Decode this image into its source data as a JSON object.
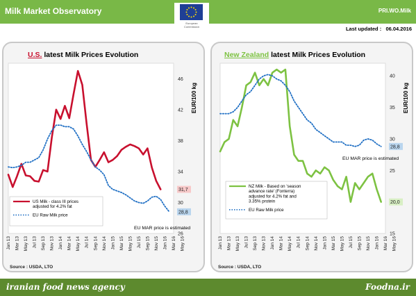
{
  "header": {
    "title": "Milk Market Observatory",
    "code": "PRI.WO.Milk",
    "logo_text": "European\nCommission",
    "last_updated": "Last updated :   06.04.2016"
  },
  "colors": {
    "header_green": "#79b847",
    "footer_green": "#5d8a2e",
    "us_series": "#c8102e",
    "nz_series": "#7dc242",
    "eu_series": "#1f6fc4",
    "us_badge": "#f7c9c9",
    "eu_badge": "#b9d5ee",
    "nz_badge": "#d8efc4"
  },
  "footer": {
    "agency": "iranian food news agency",
    "site": "Foodna.ir"
  },
  "chart_data": [
    {
      "type": "line",
      "country": "U.S.",
      "title_rest": "latest Milk Prices Evolution",
      "ylabel": "EUR/100 kg",
      "ylim": [
        26,
        48
      ],
      "yticks": [
        26,
        30,
        34,
        38,
        42,
        46
      ],
      "xticks": [
        "Jan 13",
        "Mar 13",
        "May 13",
        "Jul 13",
        "Sep 13",
        "Nov 13",
        "Jan 14",
        "Mar 14",
        "May 14",
        "Jul 14",
        "Sep 14",
        "Nov 14",
        "Jan 15",
        "Mar 15",
        "May 15",
        "Jul 15",
        "Sep 15",
        "Nov 15",
        "Jan 16",
        "Mar 16",
        "May 16"
      ],
      "x_months": [
        "Jan 13",
        "Feb 13",
        "Mar 13",
        "Apr 13",
        "May 13",
        "Jun 13",
        "Jul 13",
        "Aug 13",
        "Sep 13",
        "Oct 13",
        "Nov 13",
        "Dec 13",
        "Jan 14",
        "Feb 14",
        "Mar 14",
        "Apr 14",
        "May 14",
        "Jun 14",
        "Jul 14",
        "Aug 14",
        "Sep 14",
        "Oct 14",
        "Nov 14",
        "Dec 14",
        "Jan 15",
        "Feb 15",
        "Mar 15",
        "Apr 15",
        "May 15",
        "Jun 15",
        "Jul 15",
        "Aug 15",
        "Sep 15",
        "Oct 15",
        "Nov 15",
        "Dec 15",
        "Jan 16",
        "Feb 16",
        "Mar 16"
      ],
      "series": [
        {
          "name": "US Milk - class III prices adjusted for 4.2% fat",
          "style": "solid",
          "values": [
            33.6,
            32.0,
            33.4,
            35.0,
            33.5,
            33.4,
            32.8,
            32.7,
            34.2,
            34.0,
            38.4,
            42.0,
            40.8,
            42.5,
            40.9,
            44.0,
            47.0,
            45.2,
            40.2,
            35.5,
            34.6,
            35.5,
            36.5,
            35.2,
            35.5,
            36.0,
            36.8,
            37.2,
            37.5,
            37.3,
            37.0,
            36.2,
            37.0,
            34.5,
            32.8,
            31.7
          ]
        },
        {
          "name": "EU Raw Milk price",
          "style": "dotted",
          "values": [
            34.6,
            34.5,
            34.6,
            34.8,
            35.2,
            35.2,
            35.5,
            35.8,
            36.8,
            38.2,
            39.3,
            40.0,
            40.0,
            39.8,
            39.8,
            39.5,
            38.6,
            37.5,
            36.6,
            35.5,
            34.6,
            34.2,
            33.6,
            32.2,
            31.7,
            31.5,
            31.3,
            31.0,
            30.6,
            30.2,
            30.0,
            29.9,
            30.2,
            30.7,
            30.8,
            30.4,
            29.5,
            28.8
          ]
        }
      ],
      "annotations": {
        "last_us": "31,7",
        "last_eu": "28,8",
        "note": "EU MAR price is estimated"
      },
      "source": "Source : USDA, LTO"
    },
    {
      "type": "line",
      "country": "New Zealand",
      "title_rest": "latest Milk Prices Evolution",
      "ylabel": "EUR/100 kg",
      "ylim": [
        15,
        42
      ],
      "yticks": [
        15,
        20,
        25,
        30,
        35,
        40
      ],
      "xticks": [
        "Jan 13",
        "Mar 13",
        "May 13",
        "Jul 13",
        "Sep 13",
        "Nov 13",
        "Jan 14",
        "Mar 14",
        "May 14",
        "Jul 14",
        "Sep 14",
        "Nov 14",
        "Jan 15",
        "Mar 15",
        "May 15",
        "Jul 15",
        "Sep 15",
        "Nov 15",
        "Jan 16",
        "Mar 16",
        "May 16"
      ],
      "x_months": [
        "Jan 13",
        "Feb 13",
        "Mar 13",
        "Apr 13",
        "May 13",
        "Jun 13",
        "Jul 13",
        "Aug 13",
        "Sep 13",
        "Oct 13",
        "Nov 13",
        "Dec 13",
        "Jan 14",
        "Feb 14",
        "Mar 14",
        "Apr 14",
        "May 14",
        "Jun 14",
        "Jul 14",
        "Aug 14",
        "Sep 14",
        "Oct 14",
        "Nov 14",
        "Dec 14",
        "Jan 15",
        "Feb 15",
        "Mar 15",
        "Apr 15",
        "May 15",
        "Jun 15",
        "Jul 15",
        "Aug 15",
        "Sep 15",
        "Oct 15",
        "Nov 15",
        "Dec 15",
        "Jan 16",
        "Feb 16",
        "Mar 16"
      ],
      "series": [
        {
          "name": "NZ Milk - Based on 'season advance rate' (Fonterra) adjusted for 4.2% fat and 3.35% protein",
          "style": "solid",
          "values": [
            28.0,
            29.5,
            30.0,
            33.0,
            32.0,
            35.0,
            38.5,
            39.0,
            40.5,
            38.5,
            39.5,
            38.5,
            40.5,
            41.0,
            40.5,
            41.0,
            32.0,
            27.5,
            26.5,
            26.5,
            24.5,
            24.0,
            25.0,
            24.5,
            25.5,
            25.0,
            23.5,
            22.5,
            22.0,
            24.0,
            20.0,
            23.0,
            22.0,
            23.0,
            24.0,
            24.5,
            22.0,
            20.0
          ]
        },
        {
          "name": "EU Raw Milk price",
          "style": "dotted",
          "values": [
            34.0,
            34.0,
            34.0,
            34.3,
            35.0,
            36.0,
            37.0,
            37.5,
            38.5,
            39.5,
            40.0,
            40.2,
            40.0,
            39.5,
            39.2,
            38.5,
            37.5,
            36.0,
            35.0,
            34.0,
            33.0,
            32.5,
            31.5,
            31.0,
            30.5,
            30.0,
            29.5,
            29.5,
            29.5,
            29.0,
            29.0,
            28.8,
            29.0,
            29.8,
            30.0,
            29.8,
            29.2,
            28.8
          ]
        }
      ],
      "annotations": {
        "last_eu": "28,8",
        "last_nz": "20,0",
        "note": "EU MAR price is estimated"
      },
      "source": "Source : USDA, LTO"
    }
  ]
}
